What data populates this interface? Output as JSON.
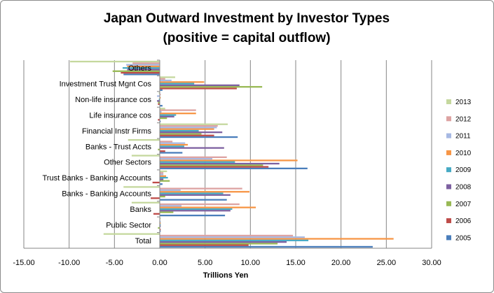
{
  "chart_data": {
    "type": "bar",
    "orientation": "horizontal",
    "title": "Japan Outward Investment by Investor Types",
    "subtitle": "(positive = capital outflow)",
    "xlabel": "Trillions Yen",
    "ylabel": "",
    "xlim": [
      -15,
      30
    ],
    "x_ticks": [
      "-15.00",
      "-10.00",
      "-5.00",
      "0.00",
      "5.00",
      "10.00",
      "15.00",
      "20.00",
      "25.00",
      "30.00"
    ],
    "grid": "vertical",
    "legend_position": "right",
    "categories": [
      "Total",
      "Public Sector",
      "Banks",
      "Banks - Banking Accounts",
      "Trust Banks - Banking  Accounts",
      "Other Sectors",
      "Banks -  Trust Accts",
      "Financial Instr Firms",
      "Life insurance cos",
      "Non-life insurance cos",
      "Investment Trust Mgnt Cos",
      "Others"
    ],
    "series": [
      {
        "name": "2005",
        "color": "#4a7ebb",
        "values": [
          23.5,
          0.1,
          7.2,
          7.4,
          0.3,
          16.3,
          2.5,
          8.6,
          0.1,
          0.3,
          0.3,
          -4.0
        ]
      },
      {
        "name": "2006",
        "color": "#be4b48",
        "values": [
          9.8,
          0.1,
          -0.7,
          -1.0,
          -0.8,
          12.0,
          0.6,
          6.0,
          -0.2,
          -0.2,
          8.5,
          -4.3
        ]
      },
      {
        "name": "2007",
        "color": "#98b954",
        "values": [
          13.0,
          -0.2,
          1.5,
          0.6,
          1.1,
          11.4,
          -0.2,
          4.6,
          0.8,
          -0.2,
          11.3,
          -5.2
        ]
      },
      {
        "name": "2008",
        "color": "#7d60a0",
        "values": [
          14.0,
          0.1,
          7.8,
          7.8,
          0.4,
          13.2,
          7.1,
          6.9,
          1.6,
          -0.3,
          8.8,
          -3.6
        ]
      },
      {
        "name": "2009",
        "color": "#46aac4",
        "values": [
          16.4,
          0.1,
          8.0,
          7.0,
          0.9,
          8.3,
          2.7,
          4.3,
          1.8,
          -0.1,
          3.8,
          -4.1
        ]
      },
      {
        "name": "2010",
        "color": "#f79646",
        "values": [
          25.8,
          0.1,
          10.6,
          9.9,
          0.7,
          15.2,
          3.1,
          6.0,
          4.0,
          0.1,
          4.9,
          -3.6
        ]
      },
      {
        "name": "2011",
        "color": "#a7b9e3",
        "values": [
          16.0,
          0.1,
          2.4,
          2.3,
          0.4,
          5.8,
          2.8,
          6.3,
          0.2,
          -0.3,
          1.3,
          -3.7
        ]
      },
      {
        "name": "2012",
        "color": "#dda3a2",
        "values": [
          14.7,
          0.0,
          8.8,
          9.1,
          0.4,
          7.4,
          1.4,
          6.4,
          4.0,
          0.1,
          0.6,
          -3.0
        ]
      },
      {
        "name": "2013",
        "color": "#c5d89e",
        "values": [
          -6.2,
          0.1,
          -3.1,
          -4.0,
          0.8,
          -3.1,
          -3.5,
          7.5,
          0.6,
          -0.1,
          1.7,
          -9.9
        ]
      }
    ]
  }
}
